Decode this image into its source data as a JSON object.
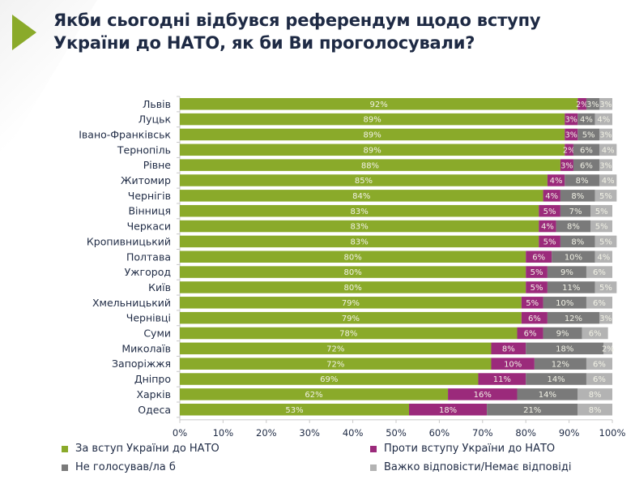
{
  "title": "Якби сьогодні відбувся референдум щодо вступу України до НАТО, як би Ви проголосували?",
  "title_lines": [
    "Якби сьогодні відбувся референдум щодо вступу",
    "України до НАТО, як би Ви проголосували?"
  ],
  "colors": {
    "accent": "#8aaa2a",
    "for": "#8aaa2a",
    "against": "#9b2a7b",
    "not_voting": "#7a7a7a",
    "hard_to_say": "#b3b3b3",
    "label_text": "#1e2a44"
  },
  "chart_data": {
    "type": "bar",
    "orientation": "horizontal",
    "stacked": true,
    "percent": true,
    "title": "Якби сьогодні відбувся референдум щодо вступу України до НАТО, як би Ви проголосували?",
    "xlabel": "",
    "ylabel": "",
    "xlim": [
      0,
      100
    ],
    "x_ticks": [
      "0%",
      "10%",
      "20%",
      "30%",
      "40%",
      "50%",
      "60%",
      "70%",
      "80%",
      "90%",
      "100%"
    ],
    "grid": false,
    "legend_position": "bottom",
    "categories": [
      "Львів",
      "Луцьк",
      "Івано-Франківськ",
      "Тернопіль",
      "Рівне",
      "Житомир",
      "Чернігів",
      "Вінниця",
      "Черкаси",
      "Кропивницький",
      "Полтава",
      "Ужгород",
      "Київ",
      "Хмельницький",
      "Чернівці",
      "Суми",
      "Миколаїв",
      "Запоріжжя",
      "Дніпро",
      "Харків",
      "Одеса"
    ],
    "series": [
      {
        "name": "За вступ України до НАТО",
        "color": "#8aaa2a",
        "values": [
          92,
          89,
          89,
          89,
          88,
          85,
          84,
          83,
          83,
          83,
          80,
          80,
          80,
          79,
          79,
          78,
          72,
          72,
          69,
          62,
          53
        ]
      },
      {
        "name": "Проти вступу України до НАТО",
        "color": "#9b2a7b",
        "values": [
          2,
          3,
          3,
          2,
          3,
          4,
          4,
          5,
          4,
          5,
          6,
          5,
          5,
          5,
          6,
          6,
          8,
          10,
          11,
          16,
          18
        ]
      },
      {
        "name": "Не голосував/ла б",
        "color": "#7a7a7a",
        "values": [
          3,
          4,
          5,
          6,
          6,
          8,
          8,
          7,
          8,
          8,
          10,
          9,
          11,
          10,
          12,
          9,
          18,
          12,
          14,
          14,
          21
        ]
      },
      {
        "name": "Важко відповісти/Немає відповіді",
        "color": "#b3b3b3",
        "values": [
          3,
          4,
          3,
          4,
          3,
          4,
          5,
          5,
          5,
          5,
          4,
          6,
          5,
          6,
          3,
          6,
          2,
          6,
          6,
          8,
          8
        ]
      }
    ]
  },
  "legend": [
    {
      "label": "За вступ України до НАТО",
      "color": "#8aaa2a"
    },
    {
      "label": "Проти вступу України до НАТО",
      "color": "#9b2a7b"
    },
    {
      "label": "Не голосував/ла б",
      "color": "#7a7a7a"
    },
    {
      "label": "Важко відповісти/Немає відповіді",
      "color": "#b3b3b3"
    }
  ]
}
